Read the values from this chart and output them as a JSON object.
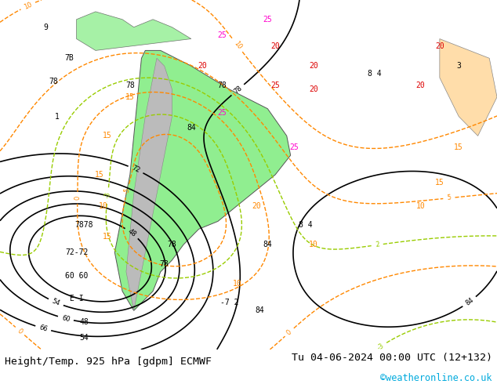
{
  "title_left": "Height/Temp. 925 hPa [gdpm] ECMWF",
  "title_right": "Tu 04-06-2024 00:00 UTC (12+132)",
  "credit": "©weatheronline.co.uk",
  "bg_color": "#ffffff",
  "fig_width": 6.34,
  "fig_height": 4.9,
  "dpi": 100,
  "title_fontsize": 9.5,
  "credit_fontsize": 8.5,
  "credit_color": "#00aadd",
  "title_color": "#000000"
}
